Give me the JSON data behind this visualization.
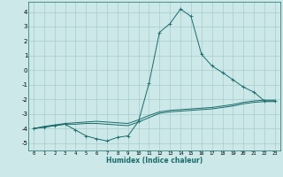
{
  "xlabel": "Humidex (Indice chaleur)",
  "xlim": [
    -0.5,
    23.5
  ],
  "ylim": [
    -5.5,
    4.7
  ],
  "yticks": [
    -5,
    -4,
    -3,
    -2,
    -1,
    0,
    1,
    2,
    3,
    4
  ],
  "xticks": [
    0,
    1,
    2,
    3,
    4,
    5,
    6,
    7,
    8,
    9,
    10,
    11,
    12,
    13,
    14,
    15,
    16,
    17,
    18,
    19,
    20,
    21,
    22,
    23
  ],
  "bg_color": "#cce8e8",
  "grid_color": "#aacccc",
  "line_color": "#1a6b6b",
  "series": [
    {
      "x": [
        0,
        1,
        2,
        3,
        4,
        5,
        6,
        7,
        8,
        9,
        10,
        11,
        12,
        13,
        14,
        15,
        16,
        17,
        18,
        19,
        20,
        21,
        22,
        23
      ],
      "y": [
        -4.0,
        -3.9,
        -3.8,
        -3.7,
        -4.1,
        -4.5,
        -4.7,
        -4.85,
        -4.6,
        -4.5,
        -3.5,
        -0.9,
        2.6,
        3.2,
        4.2,
        3.7,
        1.1,
        0.3,
        -0.15,
        -0.65,
        -1.15,
        -1.5,
        -2.1,
        -2.1
      ],
      "marker": "+"
    },
    {
      "x": [
        0,
        1,
        2,
        3,
        4,
        5,
        6,
        7,
        8,
        9,
        10,
        11,
        12,
        13,
        14,
        15,
        16,
        17,
        18,
        19,
        20,
        21,
        22,
        23
      ],
      "y": [
        -4.0,
        -3.9,
        -3.8,
        -3.7,
        -3.7,
        -3.65,
        -3.65,
        -3.7,
        -3.75,
        -3.8,
        -3.55,
        -3.25,
        -2.95,
        -2.85,
        -2.8,
        -2.75,
        -2.7,
        -2.65,
        -2.55,
        -2.45,
        -2.3,
        -2.2,
        -2.15,
        -2.15
      ],
      "marker": null
    },
    {
      "x": [
        0,
        1,
        2,
        3,
        4,
        5,
        6,
        7,
        8,
        9,
        10,
        11,
        12,
        13,
        14,
        15,
        16,
        17,
        18,
        19,
        20,
        21,
        22,
        23
      ],
      "y": [
        -4.0,
        -3.85,
        -3.75,
        -3.65,
        -3.6,
        -3.55,
        -3.5,
        -3.55,
        -3.6,
        -3.65,
        -3.4,
        -3.1,
        -2.85,
        -2.75,
        -2.7,
        -2.65,
        -2.6,
        -2.55,
        -2.45,
        -2.35,
        -2.2,
        -2.1,
        -2.05,
        -2.05
      ],
      "marker": null
    }
  ]
}
